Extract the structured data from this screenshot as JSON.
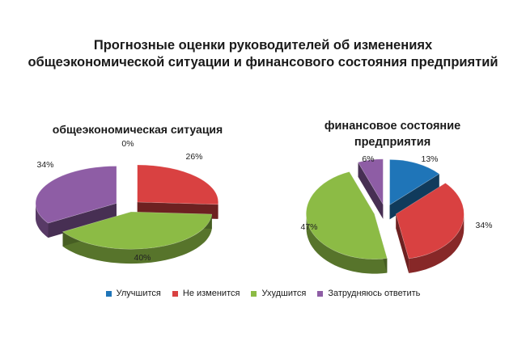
{
  "main_title": {
    "line1": "Прогнозные оценки руководителей об изменениях",
    "line2": "общеэкономической ситуации и финансового состояния предприятий"
  },
  "colors": {
    "Улучшится": "#1f75b8",
    "Не изменится": "#d94141",
    "Ухудшится": "#8cbb45",
    "Затрудняюсь ответить": "#8e5da5"
  },
  "legend": [
    "Улучшится",
    "Не изменится",
    "Ухудшится",
    "Затрудняюсь ответить"
  ],
  "chart_data": [
    {
      "type": "pie",
      "title": "общеэкономическая ситуация",
      "slices": [
        {
          "label": "Улучшится",
          "value": 0,
          "text": "0%"
        },
        {
          "label": "Не изменится",
          "value": 26,
          "text": "26%"
        },
        {
          "label": "Ухудшится",
          "value": 40,
          "text": "40%"
        },
        {
          "label": "Затрудняюсь ответить",
          "value": 34,
          "text": "34%"
        }
      ]
    },
    {
      "type": "pie",
      "title_line1": "финансовое состояние",
      "title_line2": "предприятия",
      "slices": [
        {
          "label": "Улучшится",
          "value": 13,
          "text": "13%"
        },
        {
          "label": "Не изменится",
          "value": 34,
          "text": "34%"
        },
        {
          "label": "Ухудшится",
          "value": 47,
          "text": "47%"
        },
        {
          "label": "Затрудняюсь ответить",
          "value": 6,
          "text": "6%"
        }
      ]
    }
  ]
}
